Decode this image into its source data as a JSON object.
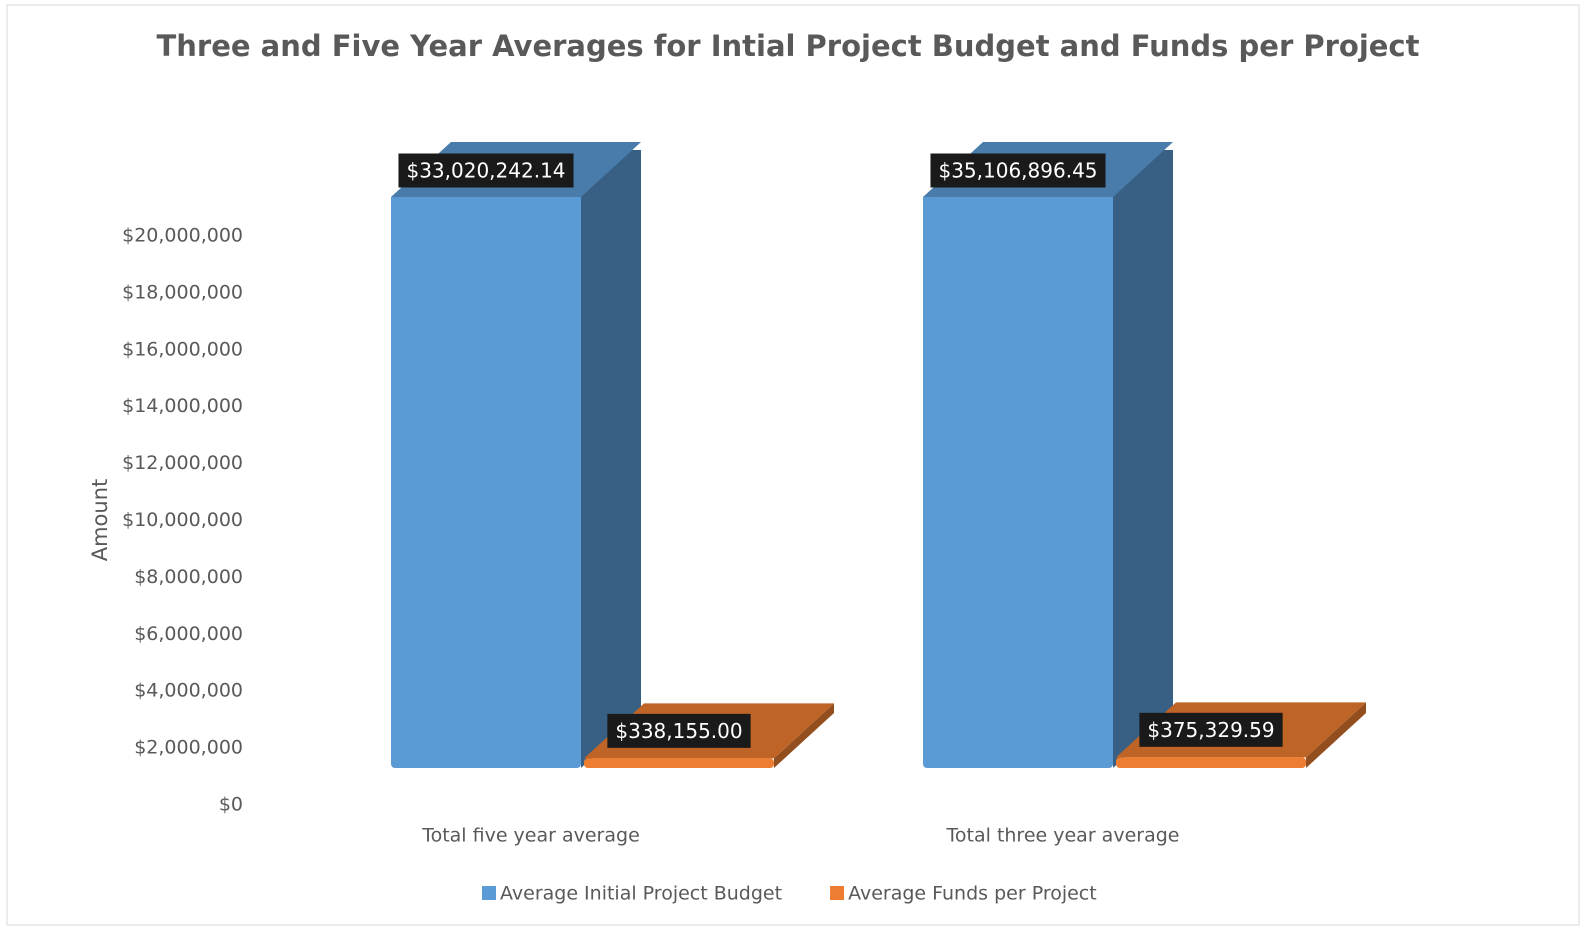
{
  "chart_data": {
    "type": "bar3d",
    "title": "Three and Five Year Averages for Intial Project Budget and Funds per Project",
    "y_axis_label": "Amount",
    "categories": [
      "Total five year average",
      "Total three year average"
    ],
    "series": [
      {
        "name": "Average Initial Project Budget",
        "color": "#5b9bd5",
        "values": [
          33020242.14,
          35106896.45
        ],
        "value_labels": [
          "$33,020,242.14",
          "$35,106,896.45"
        ]
      },
      {
        "name": "Average Funds per Project",
        "color": "#ed7d31",
        "values": [
          338155.0,
          375329.59
        ],
        "value_labels": [
          "$338,155.00",
          "$375,329.59"
        ]
      }
    ],
    "ylim": [
      0,
      20000000
    ],
    "yticks": [
      {
        "value": 0,
        "label": "$0"
      },
      {
        "value": 2000000,
        "label": "$2,000,000"
      },
      {
        "value": 4000000,
        "label": "$4,000,000"
      },
      {
        "value": 6000000,
        "label": "$6,000,000"
      },
      {
        "value": 8000000,
        "label": "$8,000,000"
      },
      {
        "value": 10000000,
        "label": "$10,000,000"
      },
      {
        "value": 12000000,
        "label": "$12,000,000"
      },
      {
        "value": 14000000,
        "label": "$14,000,000"
      },
      {
        "value": 16000000,
        "label": "$16,000,000"
      },
      {
        "value": 18000000,
        "label": "$18,000,000"
      },
      {
        "value": 20000000,
        "label": "$20,000,000"
      }
    ],
    "legend": "bottom"
  }
}
